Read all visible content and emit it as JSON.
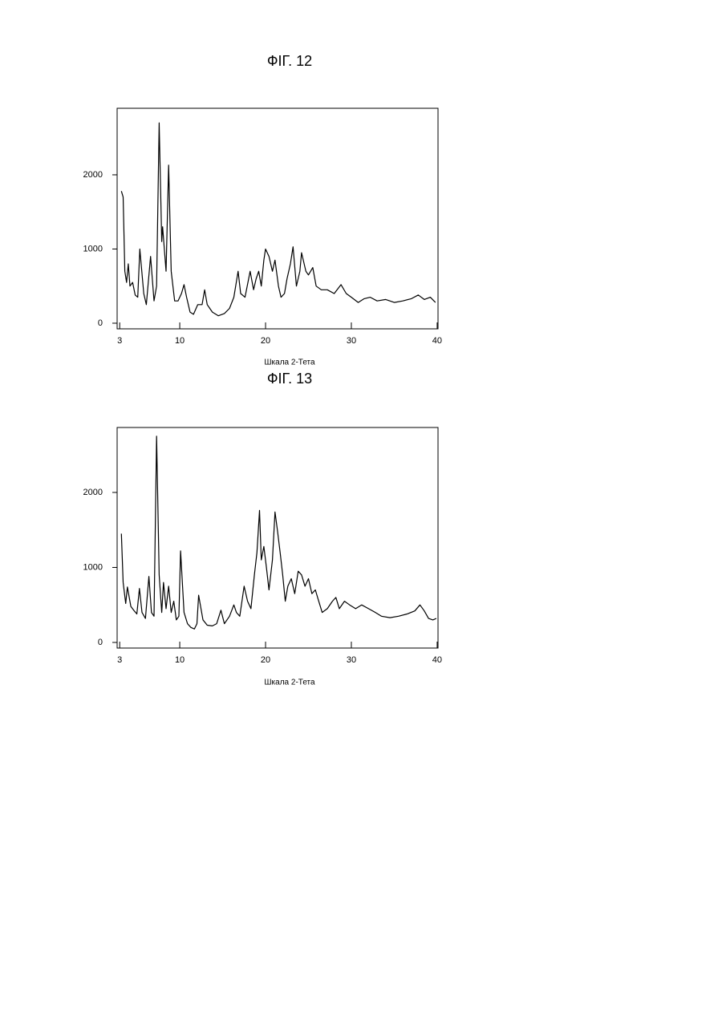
{
  "chart_data": [
    {
      "type": "line",
      "title": "ФІГ. 12",
      "x_label": "Шкала 2-Тета",
      "color": "#000000",
      "xlim": [
        2.7,
        40.1
      ],
      "ylim": [
        -76,
        2897
      ],
      "xticks": [
        3,
        10,
        20,
        30,
        40
      ],
      "yticks": [
        0,
        1000,
        2000
      ],
      "x": [
        3.2,
        3.4,
        3.6,
        3.8,
        4.0,
        4.2,
        4.5,
        4.8,
        5.1,
        5.35,
        5.8,
        6.1,
        6.6,
        7.0,
        7.3,
        7.6,
        7.9,
        8.0,
        8.4,
        8.7,
        9.0,
        9.4,
        9.8,
        10.2,
        10.5,
        10.8,
        11.2,
        11.6,
        12.1,
        12.6,
        12.9,
        13.2,
        13.8,
        14.5,
        15.2,
        15.8,
        16.3,
        16.8,
        17.1,
        17.6,
        18.2,
        18.6,
        18.9,
        19.2,
        19.5,
        19.8,
        20.0,
        20.4,
        20.8,
        21.1,
        21.5,
        21.8,
        22.2,
        22.5,
        22.9,
        23.2,
        23.6,
        24.0,
        24.2,
        24.7,
        25.0,
        25.5,
        25.9,
        26.5,
        27.2,
        28.0,
        28.8,
        29.4,
        30.0,
        30.8,
        31.5,
        32.2,
        33.0,
        34.0,
        35.0,
        36.0,
        37.0,
        37.8,
        38.5,
        39.2,
        39.8
      ],
      "values": [
        1780,
        1700,
        700,
        550,
        800,
        500,
        550,
        380,
        350,
        1000,
        400,
        250,
        900,
        300,
        500,
        2700,
        1100,
        1300,
        700,
        2130,
        700,
        300,
        300,
        400,
        520,
        350,
        150,
        120,
        250,
        250,
        450,
        250,
        150,
        100,
        130,
        200,
        350,
        700,
        400,
        350,
        700,
        450,
        600,
        700,
        500,
        850,
        1000,
        900,
        700,
        850,
        500,
        350,
        400,
        600,
        800,
        1030,
        500,
        700,
        950,
        700,
        650,
        750,
        500,
        450,
        450,
        400,
        520,
        400,
        350,
        280,
        330,
        350,
        300,
        320,
        280,
        300,
        330,
        380,
        320,
        350,
        280
      ]
    },
    {
      "type": "line",
      "title": "ФІГ. 13",
      "x_label": "Шкала 2-Тета",
      "color": "#000000",
      "xlim": [
        2.7,
        40.1
      ],
      "ylim": [
        -75,
        2866
      ],
      "xticks": [
        3,
        10,
        20,
        30,
        40
      ],
      "yticks": [
        0,
        1000,
        2000
      ],
      "x": [
        3.2,
        3.4,
        3.7,
        3.9,
        4.3,
        4.7,
        5.0,
        5.3,
        5.6,
        6.0,
        6.4,
        6.7,
        7.0,
        7.3,
        7.6,
        7.9,
        8.1,
        8.4,
        8.7,
        9.0,
        9.3,
        9.6,
        9.9,
        10.1,
        10.5,
        10.9,
        11.3,
        11.7,
        12.0,
        12.2,
        12.7,
        13.2,
        13.8,
        14.3,
        14.8,
        15.2,
        15.8,
        16.3,
        16.6,
        17.0,
        17.5,
        17.9,
        18.3,
        18.7,
        19.0,
        19.3,
        19.5,
        19.8,
        20.1,
        20.4,
        20.8,
        21.1,
        21.4,
        21.7,
        22.0,
        22.3,
        22.6,
        23.0,
        23.4,
        23.8,
        24.2,
        24.6,
        25.0,
        25.4,
        25.8,
        26.2,
        26.6,
        27.2,
        27.8,
        28.2,
        28.6,
        29.2,
        29.8,
        30.5,
        31.2,
        32.0,
        32.8,
        33.5,
        34.5,
        35.5,
        36.5,
        37.4,
        38.0,
        38.5,
        39.0,
        39.5,
        39.9
      ],
      "values": [
        1450,
        800,
        520,
        740,
        480,
        420,
        380,
        720,
        400,
        320,
        880,
        400,
        350,
        2750,
        900,
        400,
        800,
        450,
        750,
        400,
        550,
        300,
        350,
        1220,
        400,
        250,
        200,
        180,
        250,
        630,
        300,
        230,
        220,
        250,
        430,
        250,
        350,
        500,
        400,
        350,
        750,
        550,
        450,
        900,
        1200,
        1760,
        1100,
        1280,
        1000,
        700,
        1100,
        1740,
        1480,
        1200,
        900,
        550,
        750,
        850,
        650,
        950,
        900,
        750,
        850,
        650,
        700,
        550,
        400,
        450,
        550,
        600,
        450,
        550,
        500,
        450,
        500,
        450,
        400,
        350,
        330,
        350,
        380,
        420,
        500,
        420,
        320,
        300,
        320
      ]
    }
  ]
}
